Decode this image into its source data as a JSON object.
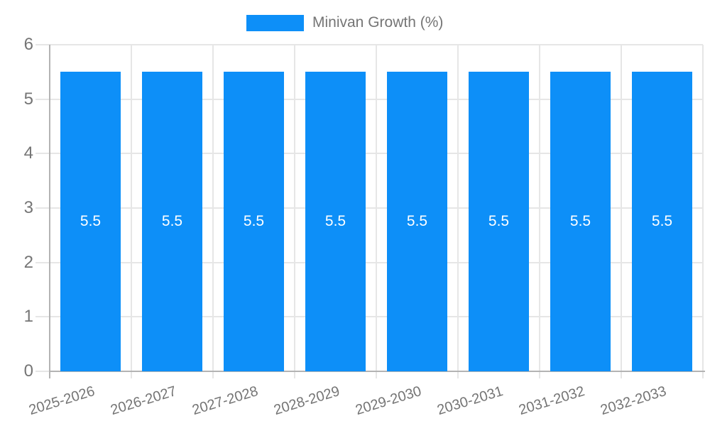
{
  "legend": {
    "label": "Minivan Growth (%)"
  },
  "chart_data": {
    "type": "bar",
    "categories": [
      "2025-2026",
      "2026-2027",
      "2027-2028",
      "2028-2029",
      "2029-2030",
      "2030-2031",
      "2031-2032",
      "2032-2033"
    ],
    "series": [
      {
        "name": "Minivan Growth (%)",
        "values": [
          5.5,
          5.5,
          5.5,
          5.5,
          5.5,
          5.5,
          5.5,
          5.5
        ]
      }
    ],
    "bar_labels": [
      "5.5",
      "5.5",
      "5.5",
      "5.5",
      "5.5",
      "5.5",
      "5.5",
      "5.5"
    ],
    "title": "",
    "xlabel": "",
    "ylabel": "",
    "ylim": [
      0,
      6
    ],
    "yticks": [
      0,
      1,
      2,
      3,
      4,
      5,
      6
    ],
    "grid": true,
    "legend_position": "top",
    "colors": {
      "bar": "#0d8ff8",
      "bar_label": "#ffffff",
      "gridline": "#e6e6e6",
      "axis": "#b3b3b3",
      "tick_label": "#757575",
      "legend_text": "#757575",
      "background": "#ffffff"
    }
  }
}
